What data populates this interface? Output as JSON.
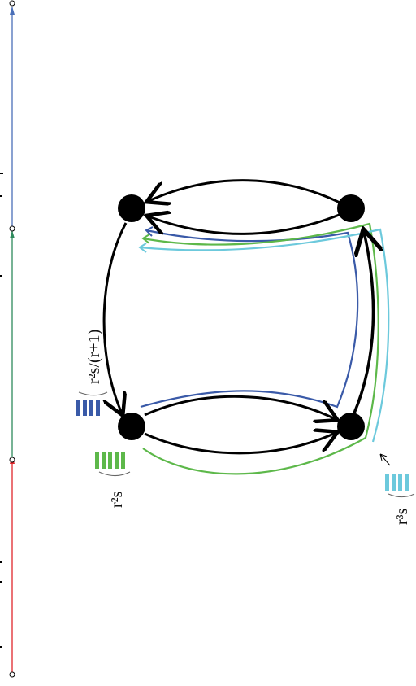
{
  "colors": {
    "black": "#000000",
    "blue": "#3a5aa8",
    "green": "#5db84a",
    "cyan": "#6cc9dc",
    "red": "#e0262b",
    "teal": "#2e8a5c",
    "axisBlue": "#4a6fb8"
  },
  "labels": {
    "blue_weight": "r²s/(r+1)",
    "green_weight": "r²s",
    "cyan_weight": "r³s"
  },
  "nodes": [
    "top-left",
    "top-right",
    "bottom-left",
    "bottom-right"
  ],
  "paths": [
    {
      "color": "blue",
      "bars": 4
    },
    {
      "color": "green",
      "bars": 5
    },
    {
      "color": "cyan",
      "bars": 4
    }
  ]
}
